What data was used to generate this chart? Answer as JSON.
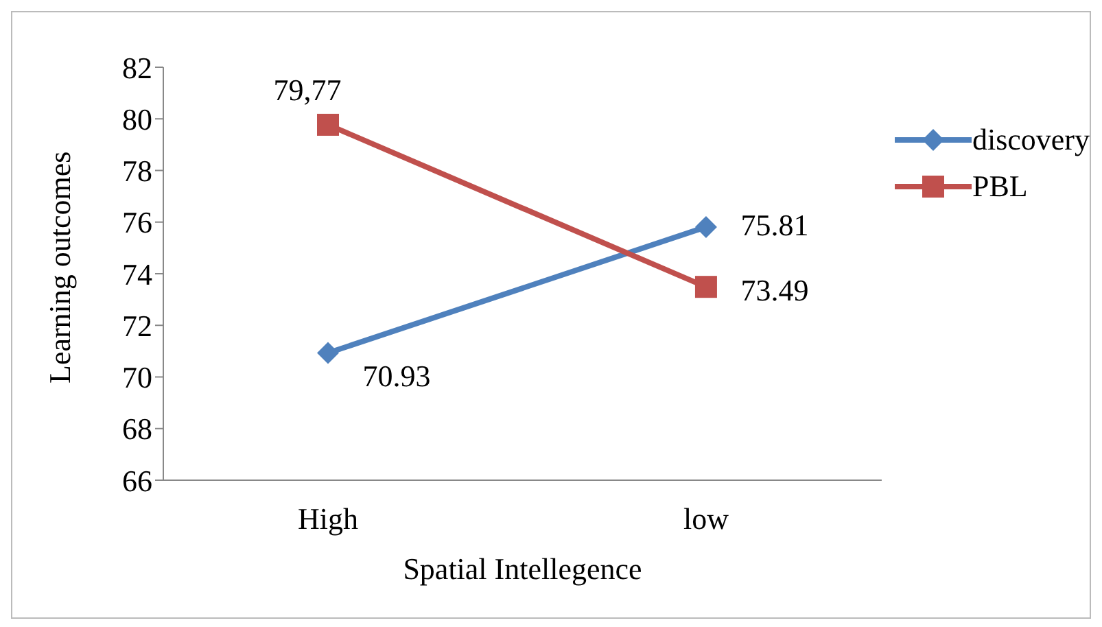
{
  "chart_data": {
    "type": "line",
    "xlabel": "Spatial Intellegence",
    "ylabel": "Learning outcomes",
    "categories": [
      "High",
      "low"
    ],
    "series": [
      {
        "name": "discovery",
        "color": "#4f81bd",
        "marker": "diamond",
        "values": [
          70.93,
          75.81
        ],
        "value_labels": [
          "70.93",
          "75.81"
        ]
      },
      {
        "name": "PBL",
        "color": "#c0504d",
        "marker": "square",
        "values": [
          79.77,
          73.49
        ],
        "value_labels": [
          "79,77",
          "73.49"
        ]
      }
    ],
    "ylim": [
      66,
      82
    ],
    "yticks": [
      66,
      68,
      70,
      72,
      74,
      76,
      78,
      80,
      82
    ],
    "grid": false,
    "legend": "right"
  }
}
